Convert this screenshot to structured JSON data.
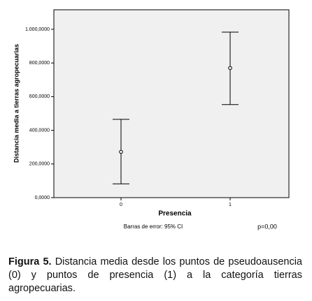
{
  "chart_data": {
    "type": "errorbar",
    "y_label": "Distancia media a tierras agropecuarias",
    "x_label": "Presencia",
    "note": "Barras de error: 95% CI",
    "annotation": "p=0,00",
    "categories": [
      "0",
      "1"
    ],
    "values": [
      272000,
      770000
    ],
    "ci_lower": [
      82000,
      553000
    ],
    "ci_upper": [
      465000,
      983000
    ],
    "color": "#000000",
    "ylim": [
      0,
      1116000
    ],
    "yticks": [
      {
        "value": 0,
        "label": "0,0000"
      },
      {
        "value": 200000,
        "label": "200,0000"
      },
      {
        "value": 400000,
        "label": "400,0000"
      },
      {
        "value": 600000,
        "label": "600,0000"
      },
      {
        "value": 800000,
        "label": "800,0000"
      },
      {
        "value": 1000000,
        "label": "1.000,0000"
      }
    ]
  },
  "caption": {
    "label": "Figura 5.",
    "text": " Distancia media desde los puntos de pseudoausencia (0) y puntos de presencia (1) a la categoría tierras agropecuarias."
  }
}
